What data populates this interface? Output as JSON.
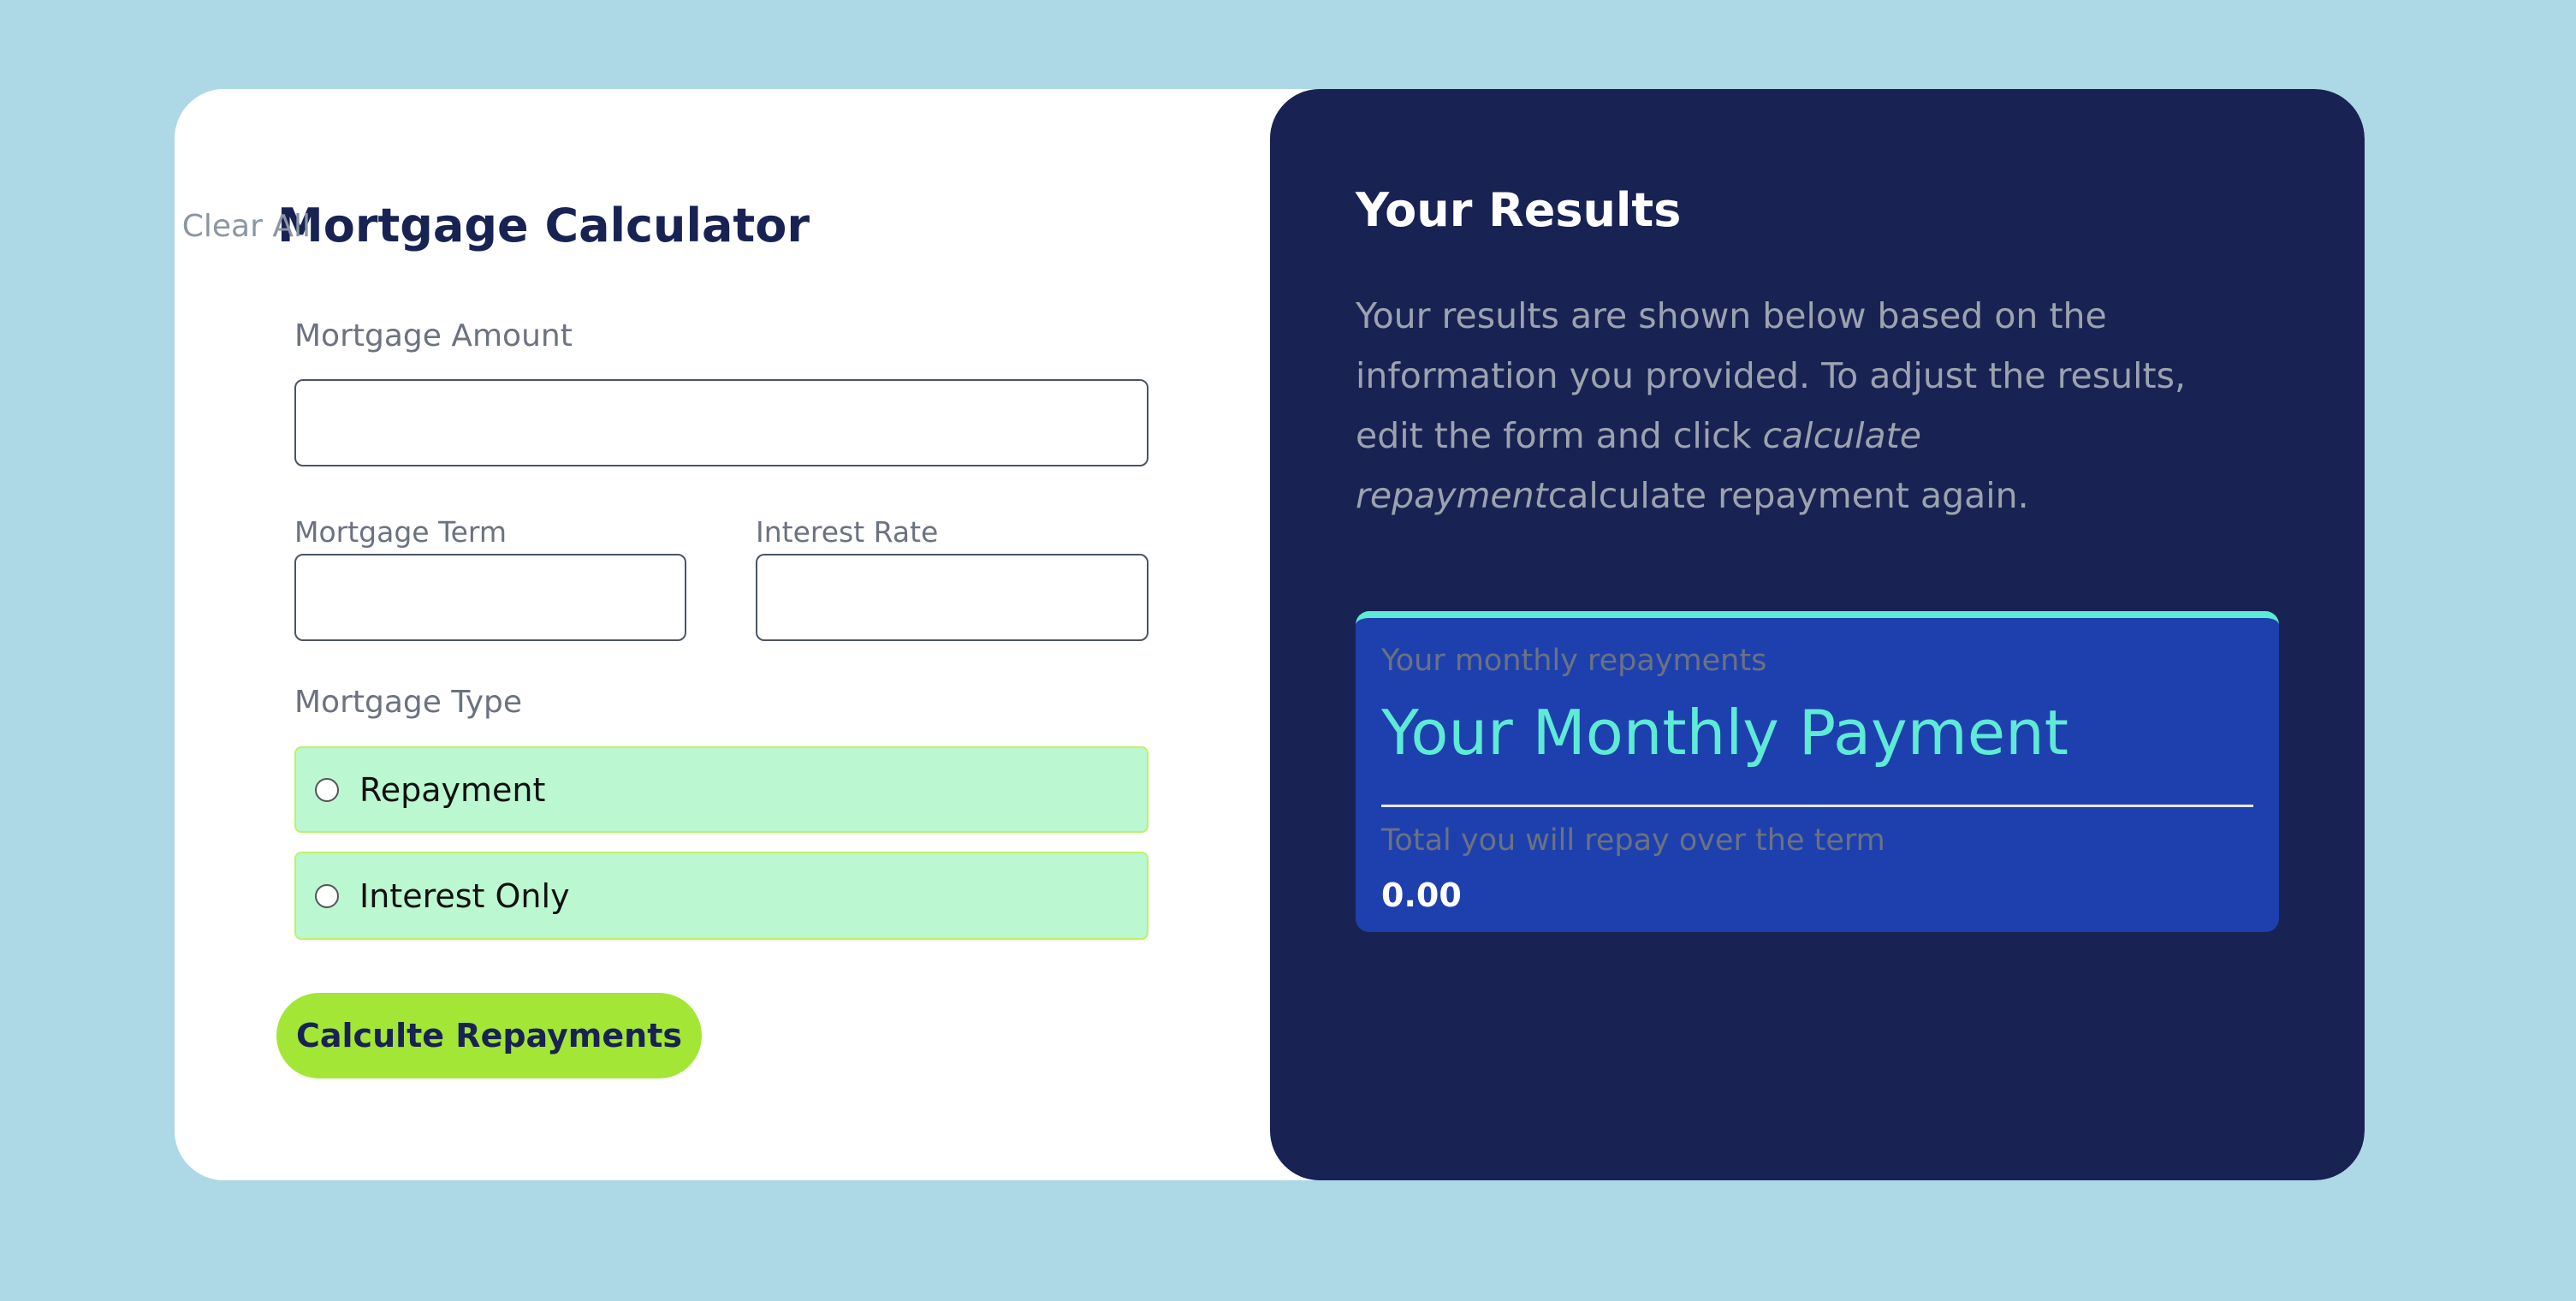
{
  "form": {
    "title": "Mortgage Calculator",
    "clear_all": "Clear All",
    "amount_label": "Mortgage Amount",
    "amount_value": "",
    "term_label": "Mortgage Term",
    "term_value": "",
    "rate_label": "Interest Rate",
    "rate_value": "",
    "type_label": "Mortgage Type",
    "options": [
      {
        "label": "Repayment",
        "checked": false
      },
      {
        "label": "Interest Only",
        "checked": false
      }
    ],
    "submit": "Calculte Repayments"
  },
  "results": {
    "title": "Your Results",
    "desc_start": "Your results are shown below based on the information you provided. To adjust the results, edit the form and click ",
    "desc_em": "calculate repayment",
    "desc_end": "calculate repayment again.",
    "monthly_label": "Your monthly repayments",
    "monthly_value": "Your Monthly Payment",
    "total_label": "Total you will repay over the term",
    "total_value": "0.00"
  },
  "colors": {
    "background": "#add8e6",
    "navy": "#182353",
    "accent": "#a3e635",
    "teal": "#5eead4",
    "result_box": "#1e40af",
    "option_bg": "#bbf7d0"
  }
}
